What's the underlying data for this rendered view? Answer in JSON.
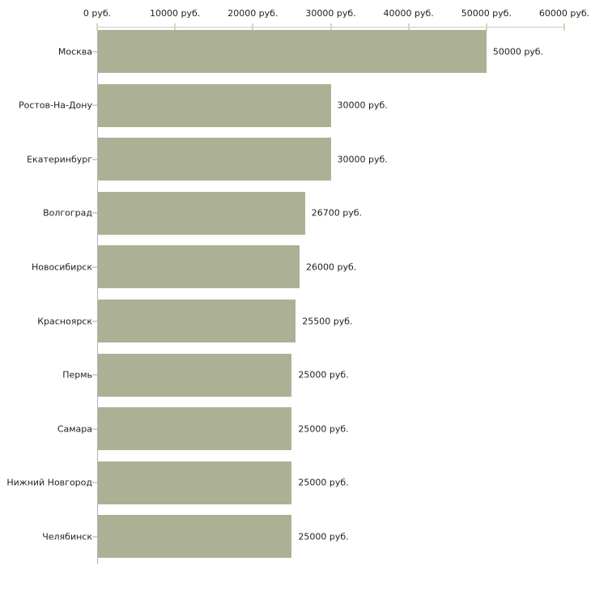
{
  "chart_data": {
    "type": "bar",
    "orientation": "horizontal",
    "title": "",
    "xlabel": "",
    "ylabel": "",
    "categories": [
      "Москва",
      "Ростов-На-Дону",
      "Екатеринбург",
      "Волгоград",
      "Новосибирск",
      "Красноярск",
      "Пермь",
      "Самара",
      "Нижний Новгород",
      "Челябинск"
    ],
    "values": [
      50000,
      30000,
      30000,
      26700,
      26000,
      25500,
      25000,
      25000,
      25000,
      25000
    ],
    "value_labels": [
      "50000 руб.",
      "30000 руб.",
      "30000 руб.",
      "26700 руб.",
      "26000 руб.",
      "25500 руб.",
      "25000 руб.",
      "25000 руб.",
      "25000 руб.",
      "25000 руб."
    ],
    "x_axis": {
      "position": "top",
      "ticks": [
        0,
        10000,
        20000,
        30000,
        40000,
        50000,
        60000
      ],
      "tick_labels": [
        "0 руб.",
        "10000 руб.",
        "20000 руб.",
        "30000 руб.",
        "40000 руб.",
        "50000 руб.",
        "60000 руб."
      ],
      "xlim": [
        0,
        60000
      ]
    },
    "grid": false,
    "legend": false,
    "colors": {
      "bar": "#acb195",
      "axis_line": "#cccccc",
      "y_axis_line": "#b3b3b3",
      "tick_mark": "#d6d8b0",
      "text": "#1f1f1f",
      "background": "#ffffff"
    }
  }
}
